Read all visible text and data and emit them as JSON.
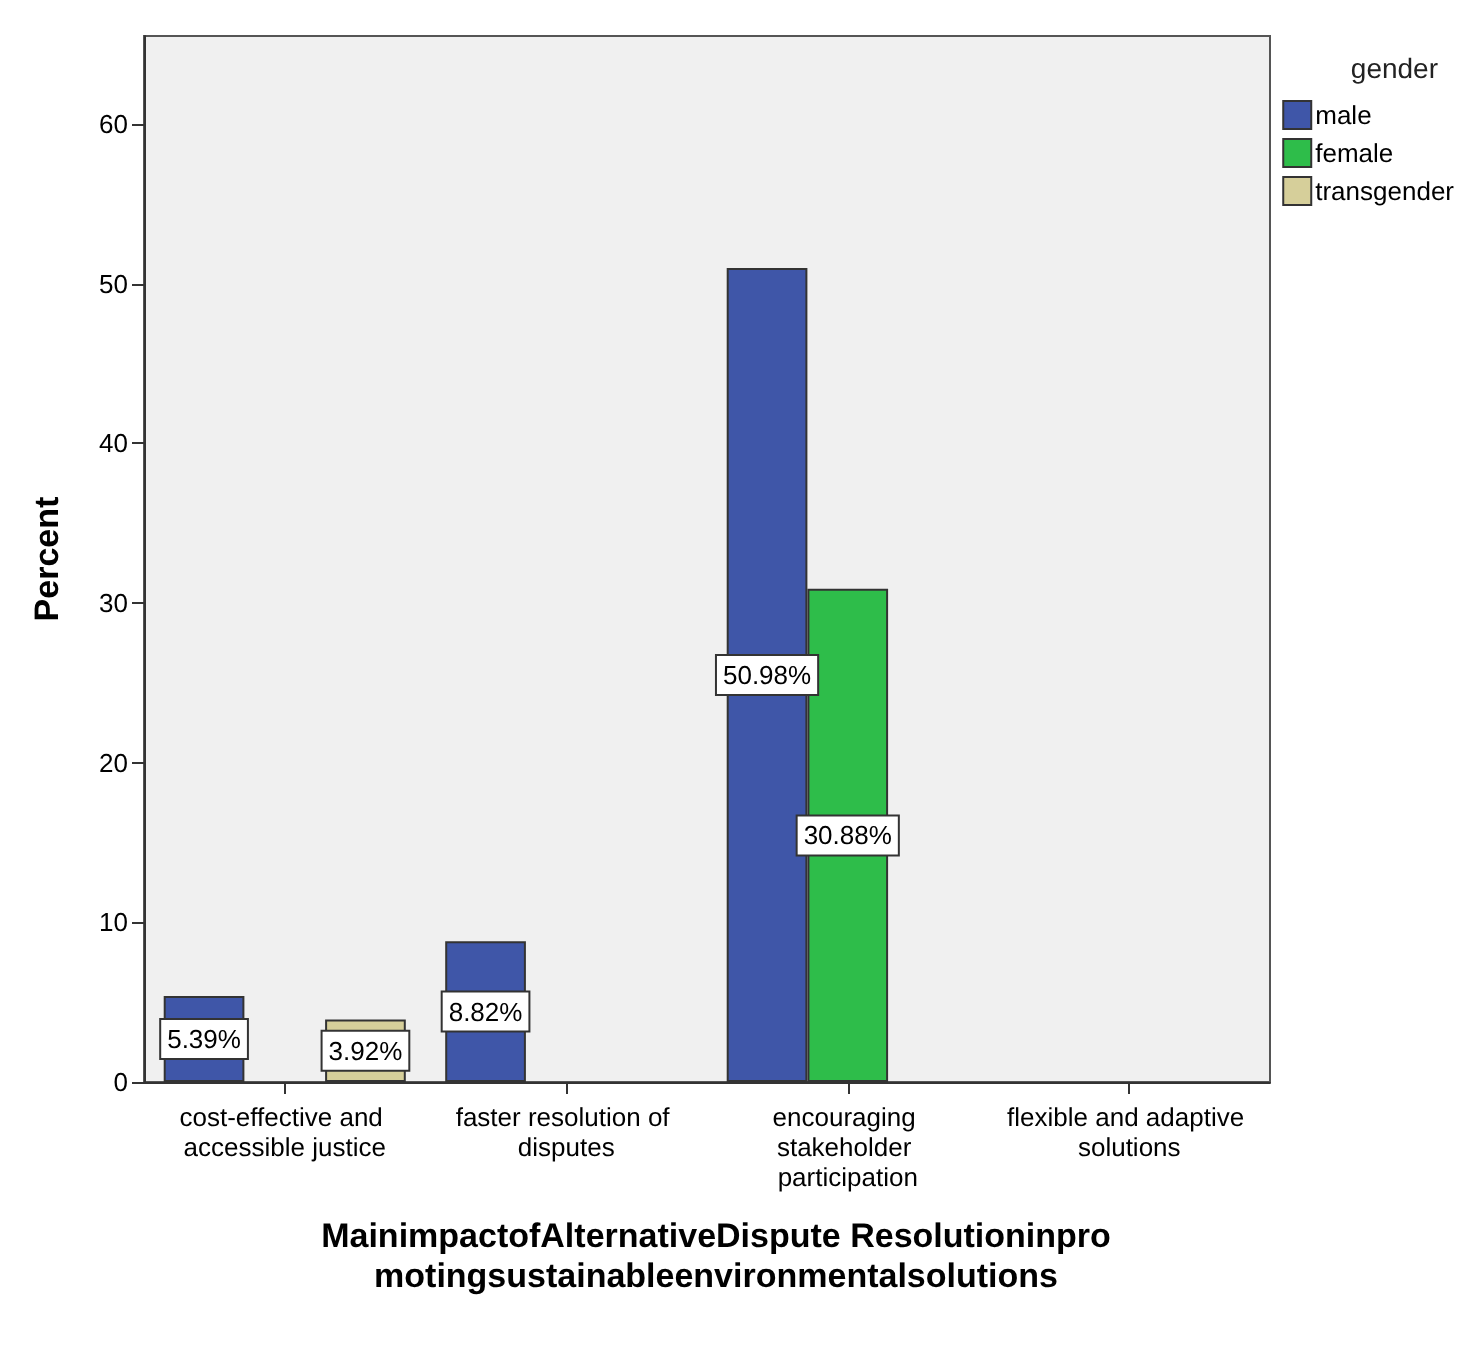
{
  "chart_data": {
    "type": "bar",
    "xlabel": "MainimpactofAlternativeDispute Resolutioninpromotingsustainableenvironmentalsolutions",
    "ylabel": "Percent",
    "legend_title": "gender",
    "categories": [
      "cost-effective and accessible justice",
      "faster resolution of disputes",
      "encouraging stakeholder participation",
      "flexible and adaptive solutions"
    ],
    "series": [
      {
        "name": "male",
        "color": "#3f56a8",
        "values": [
          5.39,
          8.82,
          50.98,
          null
        ],
        "value_labels": [
          "5.39%",
          "8.82%",
          "50.98%",
          null
        ]
      },
      {
        "name": "female",
        "color": "#2ebd4a",
        "values": [
          null,
          null,
          30.88,
          null
        ],
        "value_labels": [
          null,
          null,
          "30.88%",
          null
        ]
      },
      {
        "name": "transgender",
        "color": "#d6cf9a",
        "values": [
          3.92,
          null,
          null,
          null
        ],
        "value_labels": [
          "3.92%",
          null,
          null,
          null
        ]
      }
    ],
    "ylim": [
      0,
      65.5
    ],
    "yticks": [
      0,
      10,
      20,
      30,
      40,
      50,
      60
    ],
    "grid": false,
    "legend": "top right"
  }
}
